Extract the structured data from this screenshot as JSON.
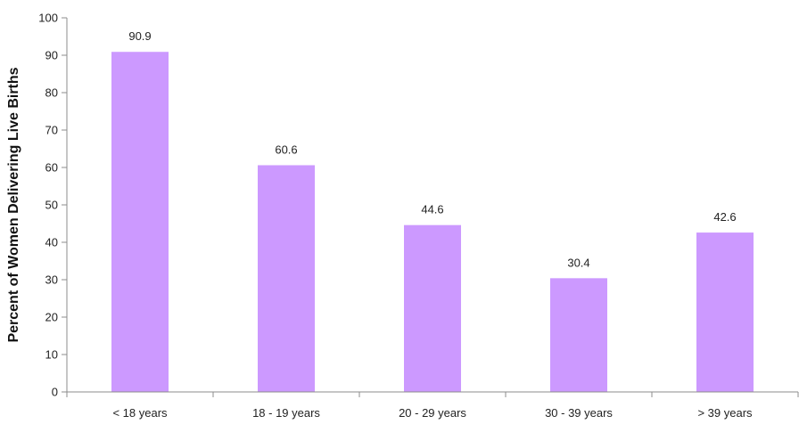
{
  "chart_data": {
    "type": "bar",
    "title": "",
    "xlabel": "",
    "ylabel": "Percent of Women Delivering Live Births",
    "categories": [
      "< 18 years",
      "18 - 19 years",
      "20 - 29 years",
      "30 - 39 years",
      "> 39 years"
    ],
    "values": [
      90.9,
      60.6,
      44.6,
      30.4,
      42.6
    ],
    "data_labels": [
      "90.9",
      "60.6",
      "44.6",
      "30.4",
      "42.6"
    ],
    "ylim": [
      0,
      100
    ],
    "yticks": [
      0,
      10,
      20,
      30,
      40,
      50,
      60,
      70,
      80,
      90,
      100
    ],
    "grid": false,
    "legend": "none",
    "colors": {
      "bar": "#cc99ff",
      "axis": "#8c8c8c",
      "text": "#222222"
    }
  }
}
